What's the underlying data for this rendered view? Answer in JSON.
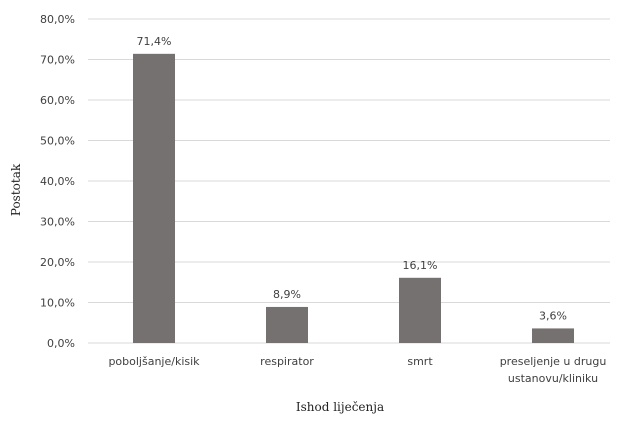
{
  "chart_data": {
    "type": "bar",
    "categories": [
      [
        "poboljšanje/kisik"
      ],
      [
        "respirator"
      ],
      [
        "smrt"
      ],
      [
        "preseljenje u drugu",
        "ustanovu/kliniku"
      ]
    ],
    "values": [
      71.4,
      8.9,
      16.1,
      3.6
    ],
    "data_labels": [
      "71,4%",
      "8,9%",
      "16,1%",
      "3,6%"
    ],
    "ylim": [
      0,
      80
    ],
    "yticks": [
      0,
      10,
      20,
      30,
      40,
      50,
      60,
      70,
      80
    ],
    "ytick_labels": [
      "0,0%",
      "10,0%",
      "20,0%",
      "30,0%",
      "40,0%",
      "50,0%",
      "60,0%",
      "70,0%",
      "80,0%"
    ],
    "xlabel": "Ishod liječenja",
    "ylabel": "Postotak",
    "grid": true,
    "bar_color": "#767171",
    "grid_color": "#d9d9d9"
  }
}
